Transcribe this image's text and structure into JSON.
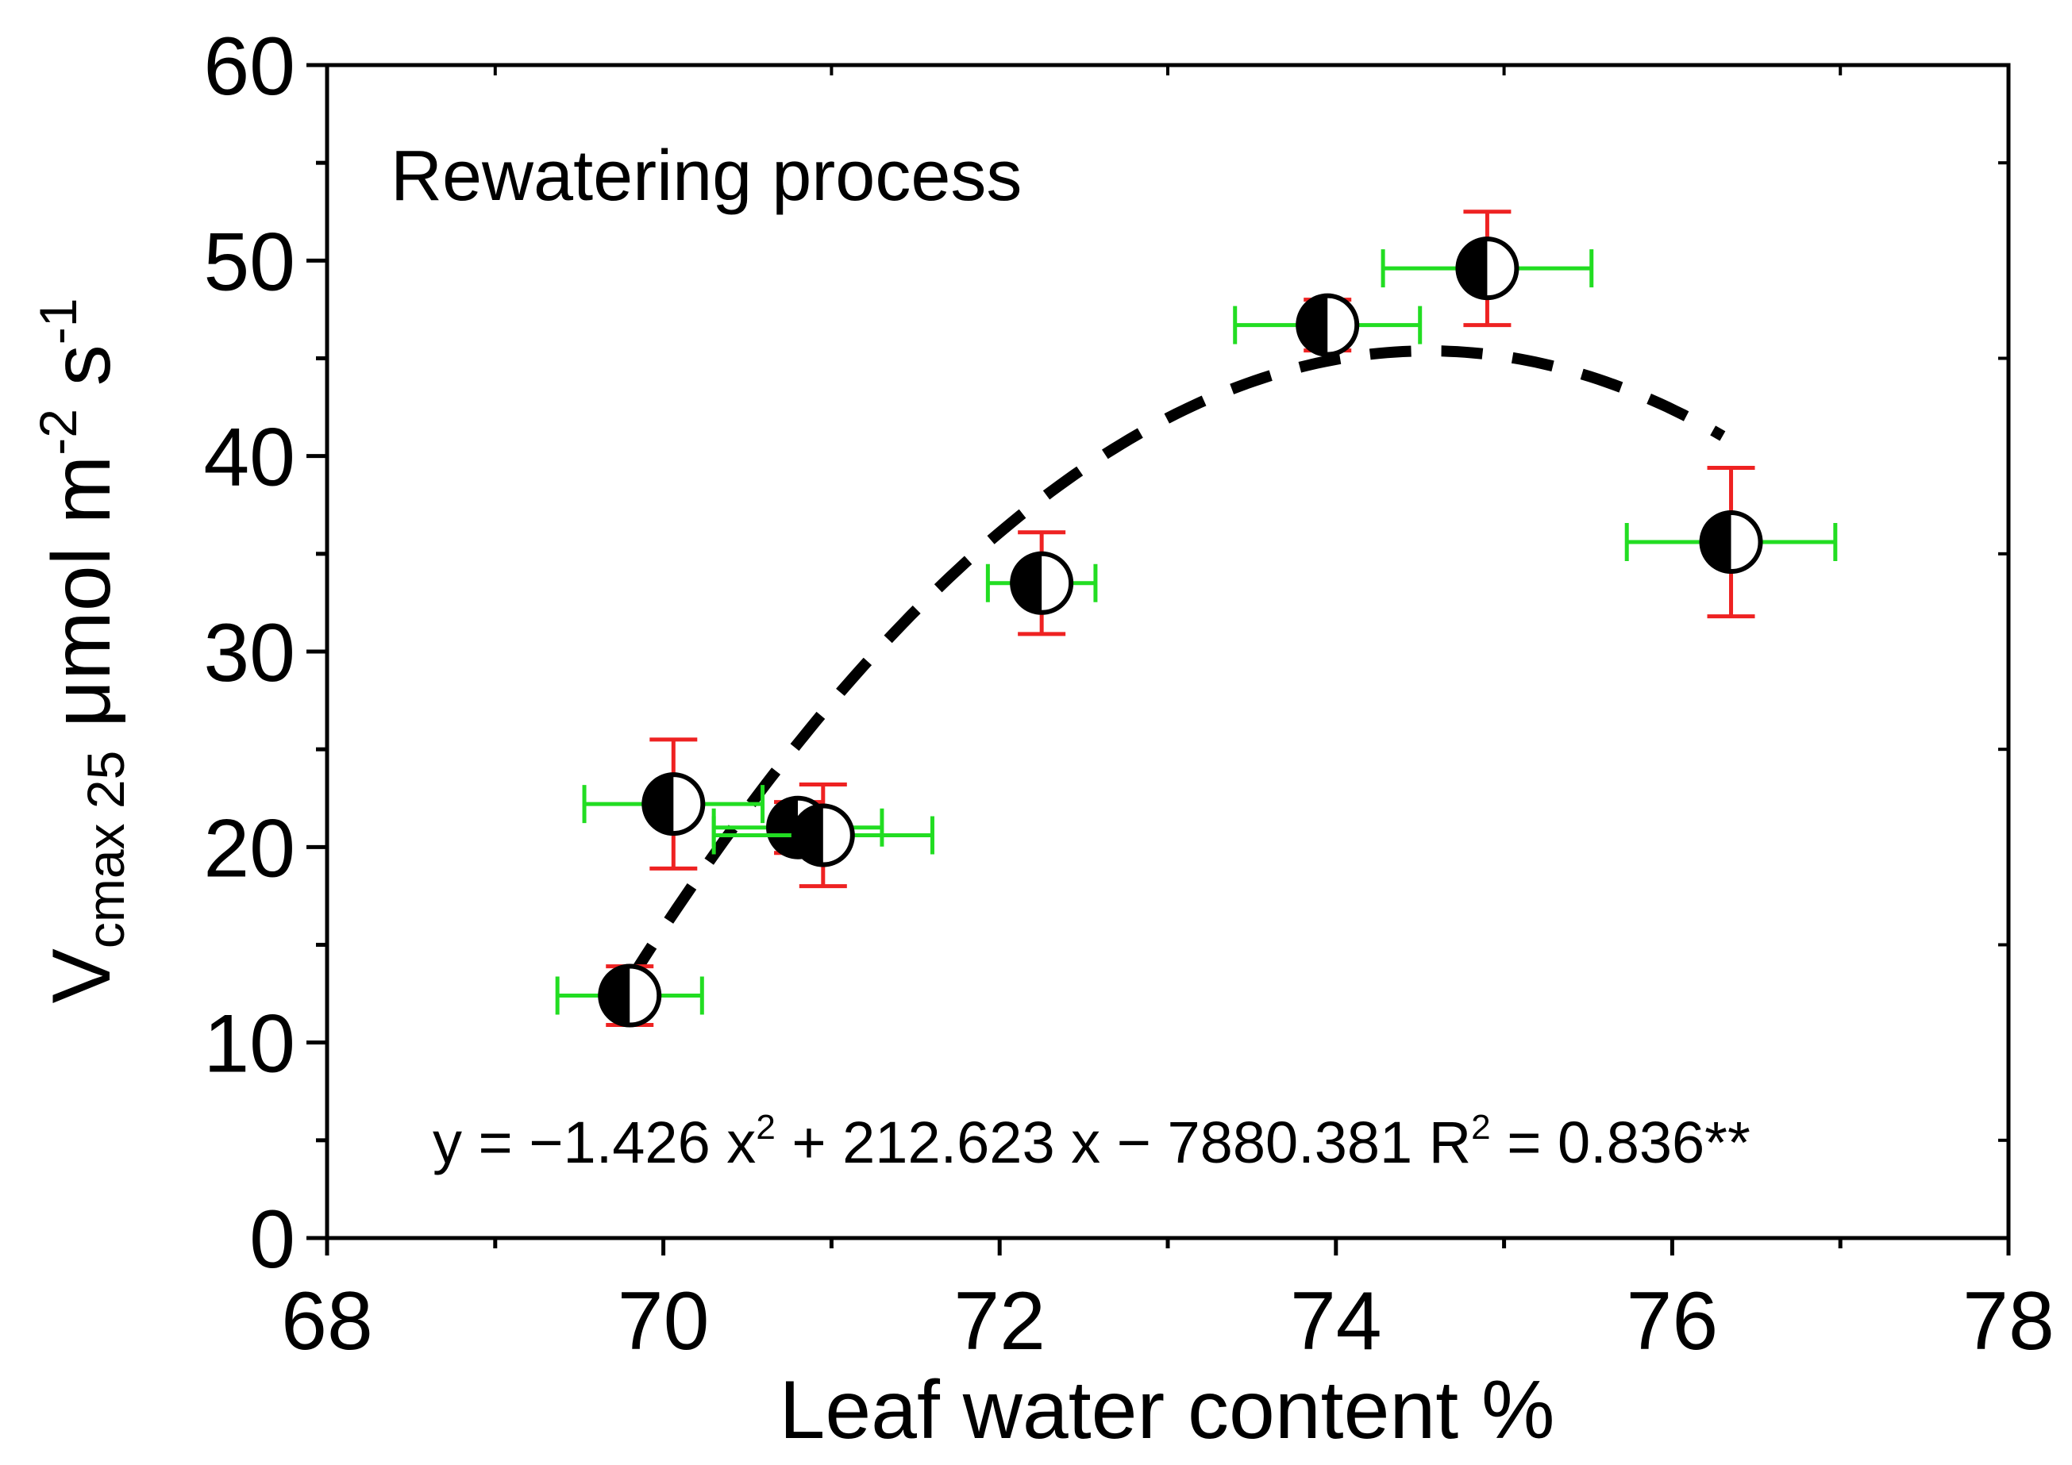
{
  "chart_data": {
    "type": "scatter",
    "title": "",
    "annotation": "Rewatering process",
    "xlabel": "Leaf water  content %",
    "ylabel": {
      "main": "V",
      "subscript": "cmax 25",
      "unit_a": " μmol m",
      "unit_a_sup": "-2",
      "unit_b": " s",
      "unit_b_sup": "-1"
    },
    "xlim": [
      68,
      78
    ],
    "ylim": [
      0,
      60
    ],
    "x_ticks": [
      "68",
      "70",
      "72",
      "74",
      "76",
      "78"
    ],
    "y_ticks": [
      "0",
      "10",
      "20",
      "30",
      "40",
      "50",
      "60"
    ],
    "grid": false,
    "series": [
      {
        "name": "Rewatering process",
        "marker": "half-filled circle",
        "points": [
          {
            "x": 69.8,
            "y": 12.4,
            "x_err": 0.43,
            "y_err": 1.5
          },
          {
            "x": 70.06,
            "y": 22.2,
            "x_err": 0.53,
            "y_err": 3.3
          },
          {
            "x": 70.8,
            "y": 21.0,
            "x_err": 0.5,
            "y_err": 1.3
          },
          {
            "x": 70.95,
            "y": 20.6,
            "x_err": 0.65,
            "y_err": 2.6
          },
          {
            "x": 72.25,
            "y": 33.5,
            "x_err": 0.32,
            "y_err": 2.6
          },
          {
            "x": 73.95,
            "y": 46.7,
            "x_err": 0.55,
            "y_err": 1.3
          },
          {
            "x": 74.9,
            "y": 49.6,
            "x_err": 0.62,
            "y_err": 2.9
          },
          {
            "x": 76.35,
            "y": 35.6,
            "x_err": 0.62,
            "y_err": 3.8
          }
        ]
      }
    ],
    "fit": {
      "type": "quadratic",
      "a": -1.426,
      "b": 212.623,
      "c": -7880.381,
      "x_range": [
        69.8,
        76.3
      ],
      "equation_parts": {
        "lhs": "y = ",
        "term1": "−1.426 x",
        "term1_sup": "2",
        "term2": " + 212.623 x − 7880.381 R",
        "term2_sup": "2",
        "rhs": " = 0.836**"
      }
    },
    "colors": {
      "x_error": "#22dd22",
      "y_error": "#ee2222",
      "fit_line": "#000000",
      "marker_fill": "#000000",
      "marker_open": "#ffffff"
    }
  }
}
